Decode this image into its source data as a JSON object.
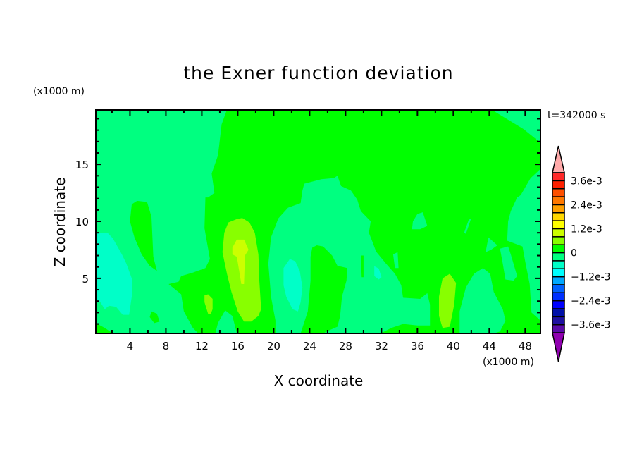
{
  "chart_data": {
    "type": "heatmap",
    "title": "the Exner function deviation",
    "xlabel": "X coordinate",
    "ylabel": "Z coordinate",
    "x_unit": "(x1000 m)",
    "y_unit": "(x1000 m)",
    "time_label": "t=342000 s",
    "xlim": [
      0.2,
      49.7
    ],
    "ylim": [
      0.17,
      19.77
    ],
    "x_ticks": [
      4,
      8,
      12,
      16,
      20,
      24,
      28,
      32,
      36,
      40,
      44,
      48
    ],
    "x_tick_labels": [
      "4",
      "8",
      "12",
      "16",
      "20",
      "24",
      "28",
      "32",
      "36",
      "40",
      "44",
      "48"
    ],
    "y_ticks": [
      5,
      10,
      15
    ],
    "y_tick_labels": [
      "5",
      "10",
      "15"
    ],
    "colorbar": {
      "levels_min": -0.004,
      "levels_step": 0.0004,
      "colors": [
        "#5a0aa8",
        "#1e10a0",
        "#0010a8",
        "#0000ff",
        "#0030ff",
        "#0060ff",
        "#00a8ff",
        "#00ffff",
        "#00ffc8",
        "#00ff80",
        "#00ff00",
        "#88ff00",
        "#ccff00",
        "#ffff00",
        "#ffd700",
        "#ffa000",
        "#ff7800",
        "#ff5000",
        "#ff2000",
        "#ff2828"
      ],
      "under_color": "#9000b0",
      "over_color": "#ffaaaa",
      "labels": [
        {
          "value": 0.0036,
          "text": "3.6e-3"
        },
        {
          "value": 0.0024,
          "text": "2.4e-3"
        },
        {
          "value": 0.0012,
          "text": "1.2e-3"
        },
        {
          "value": 0,
          "text": "0"
        },
        {
          "value": -0.0012,
          "text": "−1.2e-3"
        },
        {
          "value": -0.0024,
          "text": "−2.4e-3"
        },
        {
          "value": -0.0036,
          "text": "−3.6e-3"
        }
      ]
    },
    "background_value": -0.0002,
    "regions": [
      {
        "value": 0.0002,
        "points": [
          [
            14.8,
            19.8
          ],
          [
            44.3,
            19.77
          ],
          [
            45.6,
            19.15
          ],
          [
            47.8,
            18.1
          ],
          [
            49.7,
            16.9
          ],
          [
            49.7,
            14.6
          ],
          [
            48.6,
            13.8
          ],
          [
            47.5,
            12.3
          ],
          [
            47.1,
            12.1
          ],
          [
            46.4,
            10.9
          ],
          [
            46.1,
            10.0
          ],
          [
            46.0,
            8.3
          ],
          [
            47.7,
            7.8
          ],
          [
            48.0,
            6.5
          ],
          [
            48.5,
            4.5
          ],
          [
            48.7,
            2.0
          ],
          [
            49.7,
            1.3
          ],
          [
            49.7,
            0.17
          ],
          [
            37.4,
            0.17
          ],
          [
            37.4,
            0.86
          ],
          [
            37.4,
            2.7
          ],
          [
            37.1,
            3.7
          ],
          [
            36.3,
            3.2
          ],
          [
            34.4,
            3.3
          ],
          [
            34.2,
            4.4
          ],
          [
            33.5,
            5.4
          ],
          [
            32.5,
            6.3
          ],
          [
            31.4,
            7.35
          ],
          [
            31.0,
            8.2
          ],
          [
            30.6,
            9.0
          ],
          [
            30.8,
            10.0
          ],
          [
            29.7,
            10.9
          ],
          [
            29.3,
            11.9
          ],
          [
            28.6,
            12.7
          ],
          [
            27.5,
            13.1
          ],
          [
            27.1,
            14.0
          ],
          [
            26.7,
            13.8
          ],
          [
            25.3,
            13.7
          ],
          [
            23.4,
            13.3
          ],
          [
            23.2,
            12.7
          ],
          [
            23.0,
            11.6
          ],
          [
            21.6,
            11.2
          ],
          [
            20.5,
            10.25
          ],
          [
            20.3,
            9.8
          ],
          [
            19.7,
            8.6
          ],
          [
            19.4,
            6.3
          ],
          [
            19.7,
            3.4
          ],
          [
            20.2,
            1.3
          ],
          [
            20.2,
            0.17
          ],
          [
            15.9,
            0.17
          ],
          [
            15.4,
            1.7
          ],
          [
            14.6,
            2.2
          ],
          [
            13.8,
            1.1
          ],
          [
            13.5,
            0.17
          ],
          [
            11.6,
            0.17
          ],
          [
            11.0,
            0.65
          ],
          [
            10.0,
            2.1
          ],
          [
            9.7,
            3.6
          ],
          [
            8.3,
            4.5
          ],
          [
            9.4,
            4.7
          ],
          [
            9.7,
            5.2
          ],
          [
            11.0,
            5.5
          ],
          [
            12.4,
            5.9
          ],
          [
            12.9,
            6.7
          ],
          [
            12.3,
            9.4
          ],
          [
            12.4,
            12.1
          ],
          [
            12.7,
            12.1
          ],
          [
            13.4,
            12.5
          ],
          [
            13.1,
            14.2
          ],
          [
            13.8,
            15.8
          ],
          [
            14.2,
            18.5
          ]
        ]
      },
      {
        "value": 0.0002,
        "points": [
          [
            24.3,
            7.7
          ],
          [
            24.8,
            7.9
          ],
          [
            25.5,
            7.8
          ],
          [
            26.5,
            7.0
          ],
          [
            27.1,
            6.1
          ],
          [
            28.2,
            5.9
          ],
          [
            28.1,
            4.8
          ],
          [
            27.6,
            3.4
          ],
          [
            27.4,
            1.7
          ],
          [
            27.1,
            0.76
          ],
          [
            26.2,
            0.45
          ],
          [
            25.5,
            0.17
          ],
          [
            23.0,
            0.17
          ],
          [
            23.8,
            2.1
          ],
          [
            24.1,
            4.8
          ],
          [
            24.1,
            6.9
          ]
        ]
      },
      {
        "value": 0.0002,
        "points": [
          [
            29.7,
            7.0
          ],
          [
            30.0,
            7.0
          ],
          [
            30.0,
            5.1
          ],
          [
            29.8,
            5.1
          ]
        ]
      },
      {
        "value": 0.0002,
        "points": [
          [
            4.2,
            11.5
          ],
          [
            4.8,
            11.8
          ],
          [
            5.9,
            11.7
          ],
          [
            6.4,
            10.4
          ],
          [
            6.6,
            6.9
          ],
          [
            7.0,
            5.65
          ],
          [
            6.2,
            6.1
          ],
          [
            5.3,
            7.1
          ],
          [
            4.5,
            8.6
          ],
          [
            4.0,
            10.0
          ]
        ]
      },
      {
        "value": 0.0002,
        "points": [
          [
            6.4,
            2.1
          ],
          [
            7.0,
            1.9
          ],
          [
            7.3,
            1.2
          ],
          [
            6.7,
            1.07
          ],
          [
            6.2,
            1.6
          ]
        ]
      },
      {
        "value": 0.0002,
        "points": [
          [
            0.2,
            1.07
          ],
          [
            1.2,
            0.65
          ],
          [
            2.1,
            0.17
          ],
          [
            0.2,
            0.17
          ]
        ]
      },
      {
        "value": 0.0002,
        "points": [
          [
            31.9,
            0.17
          ],
          [
            33.1,
            0.65
          ],
          [
            34.4,
            1.0
          ],
          [
            36.0,
            0.86
          ],
          [
            37.6,
            0.86
          ],
          [
            37.6,
            0.17
          ]
        ]
      },
      {
        "value": -0.0002,
        "points": [
          [
            40.7,
            2.1
          ],
          [
            41.4,
            4.2
          ],
          [
            42.3,
            5.4
          ],
          [
            43.3,
            5.9
          ],
          [
            44.1,
            5.4
          ],
          [
            44.5,
            3.8
          ],
          [
            45.5,
            2.3
          ],
          [
            45.8,
            1.3
          ],
          [
            45.2,
            0.34
          ],
          [
            44.5,
            0.17
          ],
          [
            40.7,
            0.17
          ]
        ]
      },
      {
        "value": -0.0002,
        "points": [
          [
            45.2,
            7.6
          ],
          [
            46.1,
            7.8
          ],
          [
            46.4,
            7.1
          ],
          [
            47.1,
            5.2
          ],
          [
            46.7,
            4.8
          ],
          [
            45.8,
            4.9
          ],
          [
            45.5,
            6.3
          ]
        ]
      },
      {
        "value": -0.0002,
        "points": [
          [
            35.5,
            10.0
          ],
          [
            36.0,
            10.65
          ],
          [
            36.6,
            10.8
          ],
          [
            37.1,
            9.6
          ],
          [
            36.3,
            9.3
          ],
          [
            35.4,
            9.3
          ]
        ]
      },
      {
        "value": -0.0002,
        "points": [
          [
            41.2,
            9.0
          ],
          [
            41.7,
            10.1
          ],
          [
            42.0,
            10.3
          ],
          [
            41.4,
            8.9
          ]
        ]
      },
      {
        "value": -0.0002,
        "points": [
          [
            43.9,
            8.6
          ],
          [
            44.9,
            7.9
          ],
          [
            44.2,
            7.5
          ],
          [
            43.6,
            7.3
          ]
        ]
      },
      {
        "value": -0.0002,
        "points": [
          [
            33.3,
            7.1
          ],
          [
            33.8,
            7.3
          ],
          [
            33.9,
            5.9
          ],
          [
            33.5,
            5.9
          ]
        ]
      },
      {
        "value": -0.0006,
        "points": [
          [
            0.2,
            9.0
          ],
          [
            1.5,
            9.0
          ],
          [
            2.1,
            8.5
          ],
          [
            3.1,
            7.1
          ],
          [
            3.6,
            6.3
          ],
          [
            4.2,
            5.0
          ],
          [
            4.2,
            3.4
          ],
          [
            3.9,
            1.8
          ],
          [
            3.2,
            1.8
          ],
          [
            2.45,
            2.5
          ],
          [
            1.66,
            2.6
          ],
          [
            1.2,
            2.3
          ],
          [
            0.7,
            2.9
          ],
          [
            0.2,
            3.2
          ]
        ]
      },
      {
        "value": -0.0006,
        "points": [
          [
            21.8,
            6.7
          ],
          [
            22.4,
            6.5
          ],
          [
            22.9,
            5.65
          ],
          [
            23.2,
            4.2
          ],
          [
            23.0,
            2.9
          ],
          [
            22.7,
            2.1
          ],
          [
            22.1,
            2.3
          ],
          [
            21.4,
            3.4
          ],
          [
            21.1,
            4.4
          ],
          [
            21.1,
            5.9
          ]
        ]
      },
      {
        "value": -0.0006,
        "points": [
          [
            31.2,
            6.07
          ],
          [
            31.7,
            5.86
          ],
          [
            32.0,
            5.1
          ],
          [
            31.7,
            4.9
          ],
          [
            31.2,
            5.2
          ]
        ]
      },
      {
        "value": 0.0006,
        "points": [
          [
            14.3,
            7.3
          ],
          [
            14.5,
            9.0
          ],
          [
            14.95,
            9.9
          ],
          [
            15.9,
            10.2
          ],
          [
            16.5,
            10.3
          ],
          [
            17.3,
            9.9
          ],
          [
            17.9,
            9.0
          ],
          [
            18.3,
            7.1
          ],
          [
            18.4,
            4.8
          ],
          [
            18.6,
            2.3
          ],
          [
            18.3,
            1.7
          ],
          [
            17.5,
            1.2
          ],
          [
            16.7,
            1.2
          ],
          [
            16.0,
            2.1
          ],
          [
            15.3,
            3.8
          ],
          [
            14.8,
            5.4
          ]
        ]
      },
      {
        "value": 0.0006,
        "points": [
          [
            38.8,
            5.0
          ],
          [
            39.6,
            5.4
          ],
          [
            40.3,
            4.6
          ],
          [
            40.1,
            2.7
          ],
          [
            39.6,
            0.75
          ],
          [
            38.8,
            0.65
          ],
          [
            38.4,
            1.7
          ],
          [
            38.4,
            3.4
          ]
        ]
      },
      {
        "value": 0.0006,
        "points": [
          [
            12.3,
            3.5
          ],
          [
            12.7,
            3.6
          ],
          [
            13.2,
            3.2
          ],
          [
            13.2,
            2.3
          ],
          [
            13.0,
            1.9
          ],
          [
            12.7,
            1.9
          ],
          [
            12.3,
            2.9
          ]
        ]
      },
      {
        "value": 0.001,
        "points": [
          [
            15.4,
            7.7
          ],
          [
            15.9,
            8.4
          ],
          [
            16.7,
            8.4
          ],
          [
            17.2,
            7.5
          ],
          [
            16.8,
            7.0
          ],
          [
            16.7,
            4.5
          ],
          [
            16.4,
            4.5
          ],
          [
            15.9,
            6.9
          ],
          [
            15.4,
            7.1
          ]
        ]
      }
    ]
  }
}
